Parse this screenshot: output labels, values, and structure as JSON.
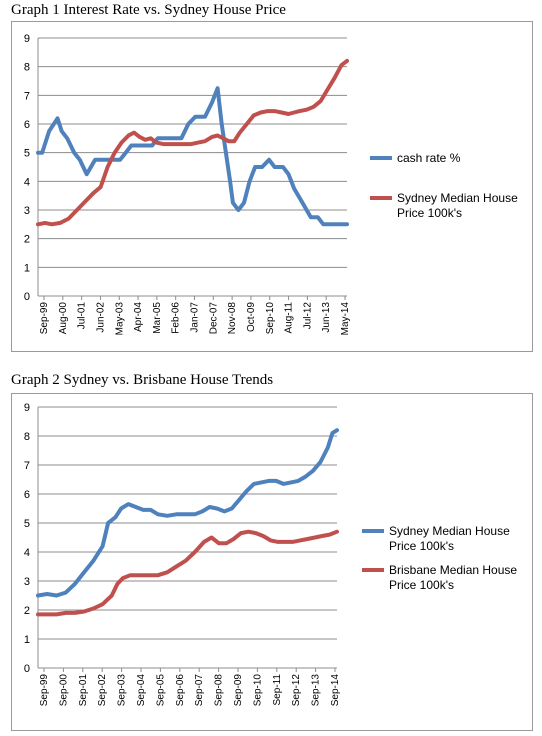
{
  "chart_data": [
    {
      "type": "line",
      "title": "Graph 1 Interest Rate vs. Sydney House Price",
      "xlabel": "",
      "ylabel": "",
      "ylim": [
        0,
        9
      ],
      "yticks": [
        "0",
        "1",
        "2",
        "3",
        "4",
        "5",
        "6",
        "7",
        "8",
        "9"
      ],
      "xticks": [
        "Sep-99",
        "Aug-00",
        "Jul-01",
        "Jun-02",
        "May-03",
        "Apr-04",
        "Mar-05",
        "Feb-06",
        "Jan-07",
        "Dec-07",
        "Nov-08",
        "Oct-09",
        "Sep-10",
        "Aug-11",
        "Jul-12",
        "Jun-13",
        "May-14"
      ],
      "grid": "horizontal",
      "legend": "right",
      "series": [
        {
          "name": "cash rate %",
          "color": "#4f81bd",
          "points": [
            [
              0,
              5
            ],
            [
              0.3,
              5
            ],
            [
              0.8,
              5.75
            ],
            [
              1.4,
              6.2
            ],
            [
              1.7,
              5.75
            ],
            [
              2.1,
              5.5
            ],
            [
              2.6,
              5
            ],
            [
              3.0,
              4.75
            ],
            [
              3.5,
              4.25
            ],
            [
              4.1,
              4.75
            ],
            [
              4.7,
              4.75
            ],
            [
              5.3,
              4.75
            ],
            [
              5.9,
              4.75
            ],
            [
              6.3,
              5
            ],
            [
              6.7,
              5.25
            ],
            [
              7.5,
              5.25
            ],
            [
              8.2,
              5.25
            ],
            [
              8.6,
              5.5
            ],
            [
              9.5,
              5.5
            ],
            [
              10.3,
              5.5
            ],
            [
              10.8,
              6
            ],
            [
              11.3,
              6.25
            ],
            [
              12.0,
              6.25
            ],
            [
              12.5,
              6.75
            ],
            [
              12.9,
              7.25
            ],
            [
              13.2,
              6
            ],
            [
              13.5,
              5
            ],
            [
              13.8,
              4
            ],
            [
              14.0,
              3.25
            ],
            [
              14.4,
              3
            ],
            [
              14.8,
              3.25
            ],
            [
              15.2,
              4
            ],
            [
              15.6,
              4.5
            ],
            [
              16.1,
              4.5
            ],
            [
              16.6,
              4.75
            ],
            [
              17.0,
              4.5
            ],
            [
              17.6,
              4.5
            ],
            [
              18.0,
              4.25
            ],
            [
              18.4,
              3.75
            ],
            [
              19.0,
              3.25
            ],
            [
              19.6,
              2.75
            ],
            [
              20.1,
              2.75
            ],
            [
              20.5,
              2.5
            ],
            [
              21.2,
              2.5
            ],
            [
              22.0,
              2.5
            ],
            [
              22.2,
              2.5
            ]
          ]
        },
        {
          "name": "Sydney Median House Price 100k's",
          "color": "#c0504d",
          "points": [
            [
              0,
              2.5
            ],
            [
              0.5,
              2.55
            ],
            [
              1.0,
              2.5
            ],
            [
              1.6,
              2.55
            ],
            [
              2.2,
              2.7
            ],
            [
              2.8,
              3.0
            ],
            [
              3.4,
              3.3
            ],
            [
              4.0,
              3.6
            ],
            [
              4.5,
              3.8
            ],
            [
              5.0,
              4.5
            ],
            [
              5.5,
              5.0
            ],
            [
              6.0,
              5.35
            ],
            [
              6.5,
              5.6
            ],
            [
              6.9,
              5.7
            ],
            [
              7.3,
              5.55
            ],
            [
              7.7,
              5.45
            ],
            [
              8.1,
              5.5
            ],
            [
              8.5,
              5.35
            ],
            [
              9.0,
              5.3
            ],
            [
              9.5,
              5.3
            ],
            [
              10.0,
              5.3
            ],
            [
              10.5,
              5.3
            ],
            [
              11.0,
              5.3
            ],
            [
              11.5,
              5.35
            ],
            [
              12.0,
              5.4
            ],
            [
              12.5,
              5.55
            ],
            [
              12.9,
              5.6
            ],
            [
              13.3,
              5.5
            ],
            [
              13.7,
              5.4
            ],
            [
              14.1,
              5.4
            ],
            [
              14.5,
              5.7
            ],
            [
              15.0,
              6.0
            ],
            [
              15.5,
              6.3
            ],
            [
              16.0,
              6.4
            ],
            [
              16.5,
              6.45
            ],
            [
              17.0,
              6.45
            ],
            [
              17.5,
              6.4
            ],
            [
              18.0,
              6.35
            ],
            [
              18.4,
              6.4
            ],
            [
              18.8,
              6.45
            ],
            [
              19.3,
              6.5
            ],
            [
              19.8,
              6.6
            ],
            [
              20.3,
              6.8
            ],
            [
              20.8,
              7.2
            ],
            [
              21.3,
              7.6
            ],
            [
              21.8,
              8.05
            ],
            [
              22.2,
              8.2
            ]
          ]
        }
      ]
    },
    {
      "type": "line",
      "title": "Graph 2 Sydney vs. Brisbane House Trends",
      "xlabel": "",
      "ylabel": "",
      "ylim": [
        0,
        9
      ],
      "yticks": [
        "0",
        "1",
        "2",
        "3",
        "4",
        "5",
        "6",
        "7",
        "8",
        "9"
      ],
      "xticks": [
        "Sep-99",
        "Sep-00",
        "Sep-01",
        "Sep-02",
        "Sep-03",
        "Sep-04",
        "Sep-05",
        "Sep-06",
        "Sep-07",
        "Sep-08",
        "Sep-09",
        "Sep-10",
        "Sep-11",
        "Sep-12",
        "Sep-13",
        "Sep-14"
      ],
      "grid": "horizontal",
      "legend": "right",
      "series": [
        {
          "name": "Sydney Median House Price 100k's",
          "color": "#4f81bd",
          "points": [
            [
              0,
              2.5
            ],
            [
              0.5,
              2.55
            ],
            [
              1.0,
              2.5
            ],
            [
              1.5,
              2.6
            ],
            [
              2.0,
              2.9
            ],
            [
              2.5,
              3.3
            ],
            [
              3.0,
              3.7
            ],
            [
              3.5,
              4.2
            ],
            [
              3.8,
              5.0
            ],
            [
              4.2,
              5.2
            ],
            [
              4.5,
              5.5
            ],
            [
              4.9,
              5.65
            ],
            [
              5.3,
              5.55
            ],
            [
              5.7,
              5.45
            ],
            [
              6.1,
              5.45
            ],
            [
              6.5,
              5.3
            ],
            [
              7.0,
              5.25
            ],
            [
              7.5,
              5.3
            ],
            [
              8.0,
              5.3
            ],
            [
              8.5,
              5.3
            ],
            [
              8.9,
              5.4
            ],
            [
              9.3,
              5.55
            ],
            [
              9.7,
              5.5
            ],
            [
              10.1,
              5.4
            ],
            [
              10.5,
              5.5
            ],
            [
              10.9,
              5.8
            ],
            [
              11.3,
              6.1
            ],
            [
              11.7,
              6.35
            ],
            [
              12.1,
              6.4
            ],
            [
              12.5,
              6.45
            ],
            [
              12.9,
              6.45
            ],
            [
              13.3,
              6.35
            ],
            [
              13.7,
              6.4
            ],
            [
              14.1,
              6.45
            ],
            [
              14.5,
              6.6
            ],
            [
              14.9,
              6.8
            ],
            [
              15.3,
              7.1
            ],
            [
              15.7,
              7.6
            ],
            [
              15.95,
              8.1
            ],
            [
              16.2,
              8.2
            ]
          ]
        },
        {
          "name": "Brisbane Median House Price 100k's",
          "color": "#c0504d",
          "points": [
            [
              0,
              1.85
            ],
            [
              0.5,
              1.85
            ],
            [
              1.0,
              1.85
            ],
            [
              1.5,
              1.9
            ],
            [
              2.0,
              1.9
            ],
            [
              2.5,
              1.95
            ],
            [
              3.0,
              2.05
            ],
            [
              3.5,
              2.2
            ],
            [
              4.0,
              2.5
            ],
            [
              4.3,
              2.9
            ],
            [
              4.6,
              3.1
            ],
            [
              5.0,
              3.2
            ],
            [
              5.5,
              3.2
            ],
            [
              6.0,
              3.2
            ],
            [
              6.5,
              3.2
            ],
            [
              7.0,
              3.3
            ],
            [
              7.5,
              3.5
            ],
            [
              8.0,
              3.7
            ],
            [
              8.5,
              4.0
            ],
            [
              9.0,
              4.35
            ],
            [
              9.4,
              4.5
            ],
            [
              9.8,
              4.3
            ],
            [
              10.2,
              4.3
            ],
            [
              10.6,
              4.45
            ],
            [
              11.0,
              4.65
            ],
            [
              11.4,
              4.7
            ],
            [
              11.8,
              4.65
            ],
            [
              12.2,
              4.55
            ],
            [
              12.6,
              4.4
            ],
            [
              13.0,
              4.35
            ],
            [
              13.4,
              4.35
            ],
            [
              13.8,
              4.35
            ],
            [
              14.2,
              4.4
            ],
            [
              14.6,
              4.45
            ],
            [
              15.0,
              4.5
            ],
            [
              15.4,
              4.55
            ],
            [
              15.8,
              4.6
            ],
            [
              16.2,
              4.7
            ]
          ]
        }
      ]
    }
  ]
}
